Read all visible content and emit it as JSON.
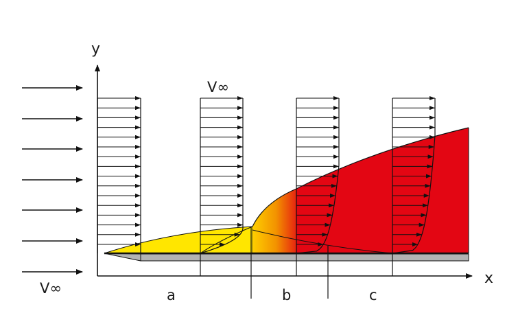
{
  "labels": {
    "y_axis": "y",
    "x_axis": "x",
    "freestream_top": "V∞",
    "freestream_left": "V∞",
    "region_a": "a",
    "region_b": "b",
    "region_c": "c"
  },
  "colors": {
    "laminar": "#ffe600",
    "transition_start": "#ffd000",
    "transition_end": "#e30613",
    "turbulent": "#e30613",
    "plate": "#b3b3b3",
    "line": "#111111"
  }
}
